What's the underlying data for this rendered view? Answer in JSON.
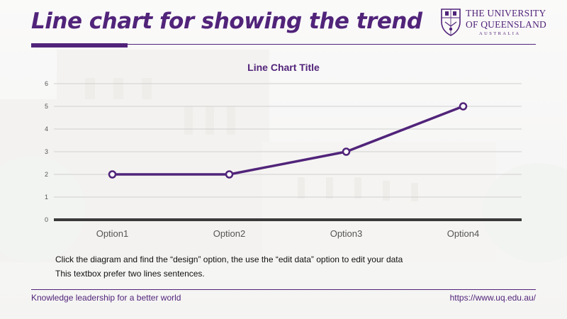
{
  "header": {
    "title": "Line chart for showing the trend",
    "logo": {
      "line1": "THE UNIVERSITY",
      "line2": "OF QUEENSLAND",
      "line3": "AUSTRALIA",
      "icon": "uq-crest-icon"
    }
  },
  "chart_data": {
    "type": "line",
    "title": "Line Chart Title",
    "categories": [
      "Option1",
      "Option2",
      "Option3",
      "Option4"
    ],
    "series": [
      {
        "values": [
          2,
          2,
          3,
          5
        ]
      }
    ],
    "ylim": [
      0,
      6
    ],
    "yticks": [
      "0",
      "1",
      "2",
      "3",
      "4",
      "5",
      "6"
    ],
    "grid": true,
    "legend": "none",
    "line_color": "#51247a"
  },
  "body": {
    "line1": "Click the diagram and find the “design” option, the use the “edit data” option to edit your data",
    "line2": "This textbox prefer two lines sentences."
  },
  "footer": {
    "tagline": "Knowledge leadership for a better world",
    "url": "https://www.uq.edu.au/"
  },
  "colors": {
    "brand": "#51247a",
    "axis": "#3a3a3a",
    "grid": "#d0d0d0"
  }
}
